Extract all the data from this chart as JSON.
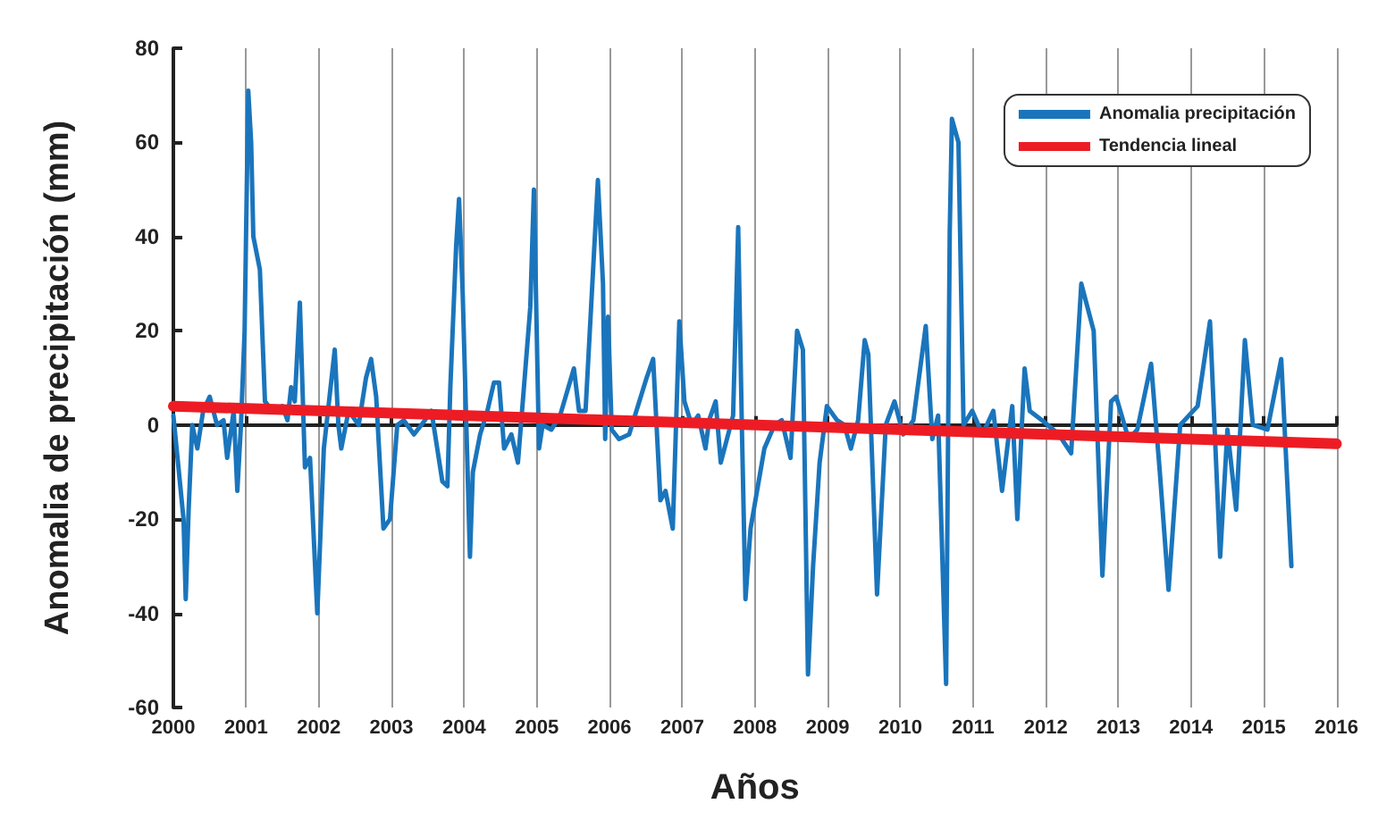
{
  "chart_data": {
    "type": "line",
    "xlabel": "Años",
    "ylabel": "Anomalia de precipitación (mm)",
    "xlim": [
      2000,
      2016
    ],
    "xticks": [
      2000,
      2001,
      2002,
      2003,
      2004,
      2005,
      2006,
      2007,
      2008,
      2009,
      2010,
      2011,
      2012,
      2013,
      2014,
      2015,
      2016
    ],
    "ylim": [
      -60,
      80
    ],
    "yticks": [
      -60,
      -40,
      -20,
      0,
      20,
      40,
      60,
      80
    ],
    "grid": "x",
    "legend": "top right",
    "marker": "none",
    "line_style": "solid",
    "series": [
      {
        "name": "Anomalia precipitación",
        "color": "#1a75bc",
        "x": [
          2000.0,
          2000.14,
          2000.17,
          2000.21,
          2000.26,
          2000.33,
          2000.41,
          2000.5,
          2000.6,
          2000.69,
          2000.74,
          2000.83,
          2000.88,
          2000.93,
          2000.98,
          2001.03,
          2001.07,
          2001.1,
          2001.19,
          2001.26,
          2001.36,
          2001.5,
          2001.57,
          2001.62,
          2001.67,
          2001.74,
          2001.81,
          2001.88,
          2001.98,
          2002.07,
          2002.22,
          2002.27,
          2002.31,
          2002.41,
          2002.55,
          2002.65,
          2002.72,
          2002.79,
          2002.89,
          2002.98,
          2003.08,
          2003.17,
          2003.31,
          2003.46,
          2003.55,
          2003.7,
          2003.77,
          2003.81,
          2003.89,
          2003.93,
          2003.98,
          2004.08,
          2004.12,
          2004.22,
          2004.32,
          2004.41,
          2004.48,
          2004.55,
          2004.65,
          2004.74,
          2004.91,
          2004.96,
          2005.03,
          2005.08,
          2005.2,
          2005.32,
          2005.51,
          2005.58,
          2005.67,
          2005.84,
          2005.91,
          2005.94,
          2005.98,
          2006.03,
          2006.13,
          2006.27,
          2006.51,
          2006.6,
          2006.7,
          2006.77,
          2006.87,
          2006.96,
          2007.03,
          2007.13,
          2007.22,
          2007.32,
          2007.37,
          2007.46,
          2007.53,
          2007.7,
          2007.77,
          2007.82,
          2007.87,
          2007.94,
          2008.13,
          2008.27,
          2008.37,
          2008.49,
          2008.58,
          2008.66,
          2008.73,
          2008.8,
          2008.89,
          2008.99,
          2009.13,
          2009.23,
          2009.32,
          2009.42,
          2009.51,
          2009.56,
          2009.68,
          2009.8,
          2009.92,
          2010.04,
          2010.18,
          2010.35,
          2010.44,
          2010.52,
          2010.63,
          2010.68,
          2010.71,
          2010.8,
          2010.87,
          2010.99,
          2011.13,
          2011.28,
          2011.4,
          2011.54,
          2011.61,
          2011.71,
          2011.78,
          2011.95,
          2012.18,
          2012.35,
          2012.49,
          2012.66,
          2012.73,
          2012.78,
          2012.9,
          2012.97,
          2013.14,
          2013.26,
          2013.45,
          2013.57,
          2013.69,
          2013.85,
          2014.09,
          2014.26,
          2014.4,
          2014.5,
          2014.62,
          2014.74,
          2014.85,
          2015.05,
          2015.24,
          2015.38
        ],
        "values": [
          2,
          -20,
          -37,
          -18,
          0,
          -5,
          3,
          6,
          0,
          1,
          -7,
          3,
          -14,
          0,
          20,
          71,
          60,
          40,
          33,
          5,
          3,
          4,
          1,
          8,
          5,
          26,
          -9,
          -7,
          -40,
          -5,
          16,
          0,
          -5,
          3,
          0,
          10,
          14,
          6,
          -22,
          -20,
          0,
          1,
          -2,
          1,
          3,
          -12,
          -13,
          8,
          38,
          48,
          28,
          -28,
          -10,
          -2,
          3,
          9,
          9,
          -5,
          -2,
          -8,
          25,
          50,
          -5,
          0,
          -1,
          2,
          12,
          3,
          3,
          52,
          30,
          -3,
          23,
          -1,
          -3,
          -2,
          10,
          14,
          -16,
          -14,
          -22,
          22,
          5,
          0,
          2,
          -5,
          1,
          5,
          -8,
          2,
          42,
          0,
          -37,
          -22,
          -5,
          0,
          1,
          -7,
          20,
          16,
          -53,
          -30,
          -8,
          4,
          1,
          0,
          -5,
          1,
          18,
          15,
          -36,
          0,
          5,
          -2,
          1,
          21,
          -3,
          2,
          -55,
          41,
          65,
          60,
          0,
          3,
          -2,
          3,
          -14,
          4,
          -20,
          12,
          3,
          1,
          -2,
          -6,
          30,
          20,
          -10,
          -32,
          5,
          6,
          -3,
          -1,
          13,
          -10,
          -35,
          0,
          4,
          22,
          -28,
          -1,
          -18,
          18,
          0,
          -1,
          14,
          -30
        ]
      },
      {
        "name": "Tendencia lineal",
        "color": "#ed1c24",
        "x": [
          2000,
          2016
        ],
        "values": [
          4,
          -4
        ]
      }
    ]
  }
}
